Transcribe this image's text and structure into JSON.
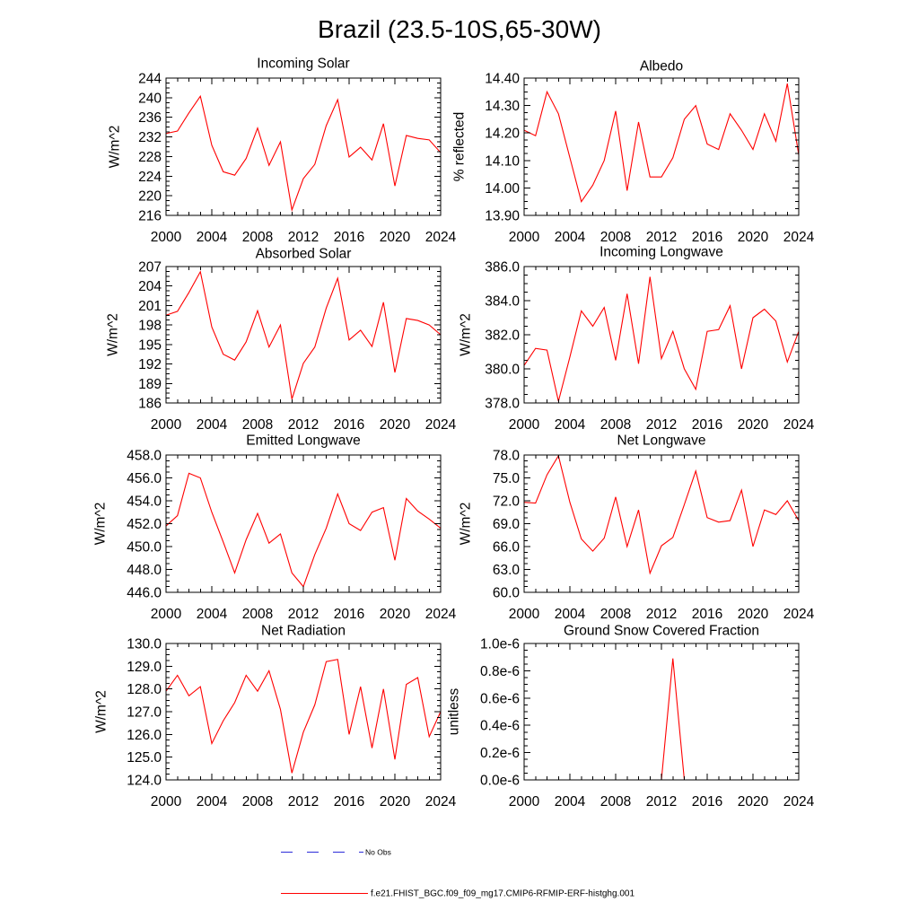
{
  "figure": {
    "title": "Brazil (23.5-10S,65-30W)"
  },
  "chart_data": [
    {
      "type": "line",
      "title": "Incoming Solar",
      "ylabel": "W/m^2",
      "x": [
        2000,
        2001,
        2002,
        2003,
        2004,
        2005,
        2006,
        2007,
        2008,
        2009,
        2010,
        2011,
        2012,
        2013,
        2014,
        2015,
        2016,
        2017,
        2018,
        2019,
        2020,
        2021,
        2022,
        2023,
        2024
      ],
      "xlim": [
        2000,
        2024
      ],
      "xticks": [
        2000,
        2004,
        2008,
        2012,
        2016,
        2020,
        2024
      ],
      "xticklabels": [
        "2000",
        "2004",
        "2008",
        "2012",
        "2016",
        "2020",
        "2024"
      ],
      "ylim": [
        216,
        244
      ],
      "yticks": [
        216,
        220,
        224,
        228,
        232,
        236,
        240,
        244
      ],
      "yticklabels": [
        "216",
        "220",
        "224",
        "228",
        "232",
        "236",
        "240",
        "244"
      ],
      "series": [
        {
          "color": "#ff0000",
          "values": [
            232.7,
            233.2,
            236.9,
            240.3,
            230.3,
            224.9,
            224.2,
            227.6,
            233.8,
            226.2,
            231.0,
            217.1,
            223.5,
            226.4,
            234.3,
            239.6,
            227.9,
            229.9,
            227.3,
            234.7,
            222.0,
            232.3,
            231.7,
            231.4,
            228.8
          ]
        }
      ]
    },
    {
      "type": "line",
      "title": "Albedo",
      "ylabel": "% reflected",
      "x": [
        2000,
        2001,
        2002,
        2003,
        2004,
        2005,
        2006,
        2007,
        2008,
        2009,
        2010,
        2011,
        2012,
        2013,
        2014,
        2015,
        2016,
        2017,
        2018,
        2019,
        2020,
        2021,
        2022,
        2023,
        2024
      ],
      "xlim": [
        2000,
        2024
      ],
      "xticks": [
        2000,
        2004,
        2008,
        2012,
        2016,
        2020,
        2024
      ],
      "xticklabels": [
        "2000",
        "2004",
        "2008",
        "2012",
        "2016",
        "2020",
        "2024"
      ],
      "ylim": [
        13.9,
        14.4
      ],
      "yticks": [
        13.9,
        14.0,
        14.1,
        14.2,
        14.3,
        14.4
      ],
      "yticklabels": [
        "13.90",
        "14.00",
        "14.10",
        "14.20",
        "14.30",
        "14.40"
      ],
      "series": [
        {
          "color": "#ff0000",
          "values": [
            14.21,
            14.19,
            14.35,
            14.27,
            14.11,
            13.95,
            14.01,
            14.1,
            14.28,
            13.99,
            14.24,
            14.04,
            14.04,
            14.11,
            14.25,
            14.3,
            14.16,
            14.14,
            14.27,
            14.21,
            14.14,
            14.27,
            14.17,
            14.38,
            14.12
          ]
        }
      ]
    },
    {
      "type": "line",
      "title": "Absorbed Solar",
      "ylabel": "W/m^2",
      "x": [
        2000,
        2001,
        2002,
        2003,
        2004,
        2005,
        2006,
        2007,
        2008,
        2009,
        2010,
        2011,
        2012,
        2013,
        2014,
        2015,
        2016,
        2017,
        2018,
        2019,
        2020,
        2021,
        2022,
        2023,
        2024
      ],
      "xlim": [
        2000,
        2024
      ],
      "xticks": [
        2000,
        2004,
        2008,
        2012,
        2016,
        2020,
        2024
      ],
      "xticklabels": [
        "2000",
        "2004",
        "2008",
        "2012",
        "2016",
        "2020",
        "2024"
      ],
      "ylim": [
        186,
        207
      ],
      "yticks": [
        186,
        189,
        192,
        195,
        198,
        201,
        204,
        207
      ],
      "yticklabels": [
        "186",
        "189",
        "192",
        "195",
        "198",
        "201",
        "204",
        "207"
      ],
      "series": [
        {
          "color": "#ff0000",
          "values": [
            199.5,
            200.1,
            203.0,
            206.2,
            197.7,
            193.5,
            192.6,
            195.4,
            200.2,
            194.6,
            198.0,
            186.6,
            192.1,
            194.6,
            200.6,
            205.2,
            195.7,
            197.2,
            194.7,
            201.5,
            190.7,
            199.0,
            198.7,
            198.0,
            196.5
          ]
        }
      ]
    },
    {
      "type": "line",
      "title": "Incoming Longwave",
      "ylabel": "W/m^2",
      "x": [
        2000,
        2001,
        2002,
        2003,
        2004,
        2005,
        2006,
        2007,
        2008,
        2009,
        2010,
        2011,
        2012,
        2013,
        2014,
        2015,
        2016,
        2017,
        2018,
        2019,
        2020,
        2021,
        2022,
        2023,
        2024
      ],
      "xlim": [
        2000,
        2024
      ],
      "xticks": [
        2000,
        2004,
        2008,
        2012,
        2016,
        2020,
        2024
      ],
      "xticklabels": [
        "2000",
        "2004",
        "2008",
        "2012",
        "2016",
        "2020",
        "2024"
      ],
      "ylim": [
        378,
        386
      ],
      "yticks": [
        378,
        380,
        382,
        384,
        386
      ],
      "yticklabels": [
        "378.0",
        "380.0",
        "382.0",
        "384.0",
        "386.0"
      ],
      "series": [
        {
          "color": "#ff0000",
          "values": [
            380.2,
            381.2,
            381.1,
            378.1,
            380.7,
            383.4,
            382.5,
            383.6,
            380.5,
            384.4,
            380.3,
            385.4,
            380.6,
            382.2,
            380.0,
            378.8,
            382.2,
            382.3,
            383.7,
            380.0,
            383.0,
            383.5,
            382.8,
            380.4,
            382.2
          ]
        }
      ]
    },
    {
      "type": "line",
      "title": "Emitted Longwave",
      "ylabel": "W/m^2",
      "x": [
        2000,
        2001,
        2002,
        2003,
        2004,
        2005,
        2006,
        2007,
        2008,
        2009,
        2010,
        2011,
        2012,
        2013,
        2014,
        2015,
        2016,
        2017,
        2018,
        2019,
        2020,
        2021,
        2022,
        2023,
        2024
      ],
      "xlim": [
        2000,
        2024
      ],
      "xticks": [
        2000,
        2004,
        2008,
        2012,
        2016,
        2020,
        2024
      ],
      "xticklabels": [
        "2000",
        "2004",
        "2008",
        "2012",
        "2016",
        "2020",
        "2024"
      ],
      "ylim": [
        446,
        458
      ],
      "yticks": [
        446,
        448,
        450,
        452,
        454,
        456,
        458
      ],
      "yticklabels": [
        "446.0",
        "448.0",
        "450.0",
        "452.0",
        "454.0",
        "456.0",
        "458.0"
      ],
      "series": [
        {
          "color": "#ff0000",
          "values": [
            451.8,
            452.7,
            456.4,
            456.0,
            453.0,
            450.4,
            447.7,
            450.6,
            452.9,
            450.3,
            451.1,
            447.7,
            446.5,
            449.3,
            451.6,
            454.6,
            452.0,
            451.4,
            453.0,
            453.4,
            448.8,
            454.2,
            453.1,
            452.4,
            451.6
          ]
        }
      ]
    },
    {
      "type": "line",
      "title": "Net Longwave",
      "ylabel": "W/m^2",
      "x": [
        2000,
        2001,
        2002,
        2003,
        2004,
        2005,
        2006,
        2007,
        2008,
        2009,
        2010,
        2011,
        2012,
        2013,
        2014,
        2015,
        2016,
        2017,
        2018,
        2019,
        2020,
        2021,
        2022,
        2023,
        2024
      ],
      "xlim": [
        2000,
        2024
      ],
      "xticks": [
        2000,
        2004,
        2008,
        2012,
        2016,
        2020,
        2024
      ],
      "xticklabels": [
        "2000",
        "2004",
        "2008",
        "2012",
        "2016",
        "2020",
        "2024"
      ],
      "ylim": [
        60,
        78
      ],
      "yticks": [
        60,
        63,
        66,
        69,
        72,
        75,
        78
      ],
      "yticklabels": [
        "60.0",
        "63.0",
        "66.0",
        "69.0",
        "72.0",
        "75.0",
        "78.0"
      ],
      "series": [
        {
          "color": "#ff0000",
          "values": [
            71.8,
            71.7,
            75.4,
            77.9,
            71.8,
            67.0,
            65.4,
            67.1,
            72.5,
            66.0,
            70.8,
            62.5,
            66.1,
            67.2,
            71.5,
            75.9,
            69.8,
            69.2,
            69.4,
            73.4,
            66.0,
            70.8,
            70.2,
            72.0,
            69.4
          ]
        }
      ]
    },
    {
      "type": "line",
      "title": "Net Radiation",
      "ylabel": "W/m^2",
      "x": [
        2000,
        2001,
        2002,
        2003,
        2004,
        2005,
        2006,
        2007,
        2008,
        2009,
        2010,
        2011,
        2012,
        2013,
        2014,
        2015,
        2016,
        2017,
        2018,
        2019,
        2020,
        2021,
        2022,
        2023,
        2024
      ],
      "xlim": [
        2000,
        2024
      ],
      "xticks": [
        2000,
        2004,
        2008,
        2012,
        2016,
        2020,
        2024
      ],
      "xticklabels": [
        "2000",
        "2004",
        "2008",
        "2012",
        "2016",
        "2020",
        "2024"
      ],
      "ylim": [
        124,
        130
      ],
      "yticks": [
        124,
        125,
        126,
        127,
        128,
        129,
        130
      ],
      "yticklabels": [
        "124.0",
        "125.0",
        "126.0",
        "127.0",
        "128.0",
        "129.0",
        "130.0"
      ],
      "series": [
        {
          "color": "#ff0000",
          "values": [
            127.9,
            128.6,
            127.7,
            128.1,
            125.6,
            126.6,
            127.4,
            128.6,
            127.9,
            128.8,
            127.1,
            124.3,
            126.1,
            127.3,
            129.2,
            129.3,
            126.0,
            128.1,
            125.4,
            128.0,
            124.9,
            128.2,
            128.5,
            125.9,
            127.0
          ]
        }
      ]
    },
    {
      "type": "line",
      "title": "Ground Snow Covered Fraction",
      "ylabel": "unitless",
      "x": [
        2000,
        2001,
        2002,
        2003,
        2004,
        2005,
        2006,
        2007,
        2008,
        2009,
        2010,
        2011,
        2012,
        2013,
        2014,
        2015,
        2016,
        2017,
        2018,
        2019,
        2020,
        2021,
        2022,
        2023,
        2024
      ],
      "xlim": [
        2000,
        2024
      ],
      "xticks": [
        2000,
        2004,
        2008,
        2012,
        2016,
        2020,
        2024
      ],
      "xticklabels": [
        "2000",
        "2004",
        "2008",
        "2012",
        "2016",
        "2020",
        "2024"
      ],
      "ylim": [
        0,
        1e-06
      ],
      "yticks": [
        0,
        2e-07,
        4e-07,
        6e-07,
        8e-07,
        1e-06
      ],
      "yticklabels": [
        "0.0e-6",
        "0.2e-6",
        "0.4e-6",
        "0.6e-6",
        "0.8e-6",
        "1.0e-6"
      ],
      "series": [
        {
          "color": "#ff0000",
          "values": [
            0,
            0,
            0,
            0,
            0,
            0,
            0,
            0,
            0,
            0,
            0,
            0,
            0,
            8.9e-07,
            0,
            0,
            0,
            0,
            0,
            0,
            0,
            0,
            0,
            0,
            0
          ]
        }
      ]
    }
  ],
  "legend": {
    "entries": [
      {
        "label": "No Obs",
        "color": "#2b2bd9",
        "dashed": true
      },
      {
        "label": "f.e21.FHIST_BGC.f09_f09_mg17.CMIP6-RFMIP-ERF-histghg.001",
        "color": "#ff0000",
        "dashed": false
      }
    ]
  }
}
